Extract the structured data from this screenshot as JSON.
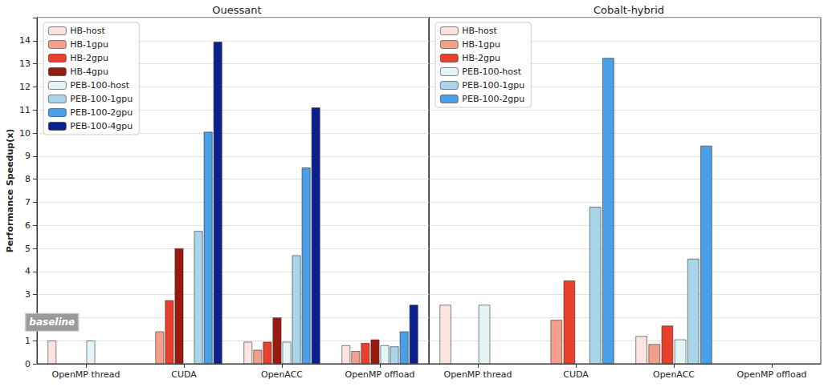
{
  "chart_data": [
    {
      "type": "bar",
      "title": "Ouessant",
      "ylabel": "Performance Speedup(x)",
      "categories": [
        "OpenMP thread",
        "CUDA",
        "OpenACC",
        "OpenMP offload"
      ],
      "series": [
        {
          "name": "HB-host",
          "color": "#fbe3df",
          "values": [
            1.0,
            null,
            0.95,
            0.8
          ]
        },
        {
          "name": "HB-1gpu",
          "color": "#f2a08b",
          "values": [
            null,
            1.4,
            0.6,
            0.55
          ]
        },
        {
          "name": "HB-2gpu",
          "color": "#e8402b",
          "values": [
            null,
            2.75,
            0.95,
            0.9
          ]
        },
        {
          "name": "HB-4gpu",
          "color": "#9b1a10",
          "values": [
            null,
            5.0,
            2.0,
            1.05
          ]
        },
        {
          "name": "PEB-100-host",
          "color": "#e4f5f7",
          "values": [
            1.0,
            null,
            0.95,
            0.8
          ]
        },
        {
          "name": "PEB-100-1gpu",
          "color": "#a8d5e9",
          "values": [
            null,
            5.75,
            4.7,
            0.75
          ]
        },
        {
          "name": "PEB-100-2gpu",
          "color": "#4a9fe6",
          "values": [
            null,
            10.05,
            8.5,
            1.4
          ]
        },
        {
          "name": "PEB-100-4gpu",
          "color": "#0b1f8e",
          "values": [
            null,
            13.95,
            11.1,
            2.55
          ]
        }
      ],
      "ylim": [
        0,
        15
      ],
      "yticks": [
        0,
        1,
        2,
        3,
        4,
        5,
        6,
        7,
        8,
        9,
        10,
        11,
        12,
        13,
        14
      ],
      "grid": true,
      "legend": "upper left",
      "annotations": [
        {
          "text": "baseline",
          "x": "OpenMP thread",
          "y": 1.8
        }
      ]
    },
    {
      "type": "bar",
      "title": "Cobalt-hybrid",
      "categories": [
        "OpenMP thread",
        "CUDA",
        "OpenACC",
        "OpenMP offload"
      ],
      "series": [
        {
          "name": "HB-host",
          "color": "#fbe3df",
          "values": [
            2.55,
            null,
            1.2,
            null
          ]
        },
        {
          "name": "HB-1gpu",
          "color": "#f2a08b",
          "values": [
            null,
            1.9,
            0.85,
            null
          ]
        },
        {
          "name": "HB-2gpu",
          "color": "#e8402b",
          "values": [
            null,
            3.6,
            1.65,
            null
          ]
        },
        {
          "name": "PEB-100-host",
          "color": "#e4f5f7",
          "values": [
            2.55,
            null,
            1.05,
            null
          ]
        },
        {
          "name": "PEB-100-1gpu",
          "color": "#a8d5e9",
          "values": [
            null,
            6.8,
            4.55,
            null
          ]
        },
        {
          "name": "PEB-100-2gpu",
          "color": "#4a9fe6",
          "values": [
            null,
            13.25,
            9.45,
            null
          ]
        }
      ],
      "ylim": [
        0,
        15
      ],
      "yticks": [
        0,
        1,
        2,
        3,
        4,
        5,
        6,
        7,
        8,
        9,
        10,
        11,
        12,
        13,
        14
      ],
      "grid": true,
      "legend": "upper left",
      "tick_labels": "x"
    }
  ]
}
